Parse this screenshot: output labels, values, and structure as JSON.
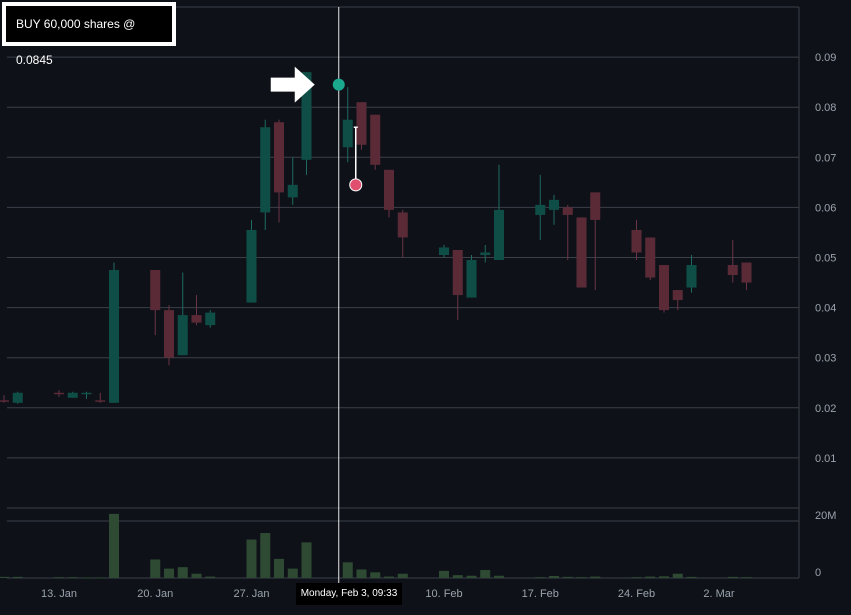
{
  "trade_label": "BUY 60,000 shares @ 0.0845",
  "cursor_label": "Monday, Feb 3, 09:33",
  "colors": {
    "background": "#0e1118",
    "grid": "#3b4048",
    "up": "#0f4e46",
    "down": "#5a2a36",
    "wick_up": "#1d6a60",
    "wick_down": "#6a3444",
    "volume": "#2e4a32",
    "buy_marker": "#1aa88f",
    "sell_marker": "#e0506e",
    "axis_text": "#9aa3ad"
  },
  "chart_data": {
    "type": "candlestick",
    "title": "",
    "price_axis": {
      "ylim": [
        0,
        0.1
      ],
      "ticks": [
        "0.01",
        "0.02",
        "0.03",
        "0.04",
        "0.05",
        "0.06",
        "0.07",
        "0.08",
        "0.09"
      ],
      "position": "right"
    },
    "volume_axis": {
      "ticks": [
        "0",
        "20M"
      ],
      "position": "right"
    },
    "x_axis": {
      "labels": [
        "13. Jan",
        "20. Jan",
        "27. Jan",
        "3. Feb",
        "10. Feb",
        "17. Feb",
        "24. Feb",
        "2. Mar"
      ],
      "label_dates": [
        "2025-01-13",
        "2025-01-20",
        "2025-01-27",
        "2025-02-03",
        "2025-02-10",
        "2025-02-17",
        "2025-02-24",
        "2025-03-02"
      ]
    },
    "grid": true,
    "candles": [
      {
        "date": "2025-01-09",
        "open": 0.0215,
        "high": 0.0225,
        "low": 0.021,
        "close": 0.0212
      },
      {
        "date": "2025-01-10",
        "open": 0.021,
        "high": 0.0232,
        "low": 0.0208,
        "close": 0.023
      },
      {
        "date": "2025-01-13",
        "open": 0.023,
        "high": 0.0235,
        "low": 0.0222,
        "close": 0.0228
      },
      {
        "date": "2025-01-14",
        "open": 0.022,
        "high": 0.0232,
        "low": 0.022,
        "close": 0.023
      },
      {
        "date": "2025-01-15",
        "open": 0.023,
        "high": 0.0232,
        "low": 0.0218,
        "close": 0.023
      },
      {
        "date": "2025-01-16",
        "open": 0.0215,
        "high": 0.023,
        "low": 0.021,
        "close": 0.0212
      },
      {
        "date": "2025-01-17",
        "open": 0.021,
        "high": 0.049,
        "low": 0.021,
        "close": 0.0475
      },
      {
        "date": "2025-01-20",
        "open": 0.0475,
        "high": 0.0475,
        "low": 0.0345,
        "close": 0.0395
      },
      {
        "date": "2025-01-21",
        "open": 0.0395,
        "high": 0.0405,
        "low": 0.0285,
        "close": 0.03
      },
      {
        "date": "2025-01-22",
        "open": 0.0305,
        "high": 0.047,
        "low": 0.0305,
        "close": 0.0385
      },
      {
        "date": "2025-01-23",
        "open": 0.0385,
        "high": 0.0425,
        "low": 0.0365,
        "close": 0.037
      },
      {
        "date": "2025-01-24",
        "open": 0.0365,
        "high": 0.0395,
        "low": 0.036,
        "close": 0.039
      },
      {
        "date": "2025-01-27",
        "open": 0.041,
        "high": 0.0575,
        "low": 0.041,
        "close": 0.0555
      },
      {
        "date": "2025-01-28",
        "open": 0.059,
        "high": 0.0775,
        "low": 0.0555,
        "close": 0.076
      },
      {
        "date": "2025-01-29",
        "open": 0.077,
        "high": 0.0775,
        "low": 0.057,
        "close": 0.063
      },
      {
        "date": "2025-01-30",
        "open": 0.062,
        "high": 0.07,
        "low": 0.0605,
        "close": 0.0645
      },
      {
        "date": "2025-01-31",
        "open": 0.0695,
        "high": 0.087,
        "low": 0.0665,
        "close": 0.087
      },
      {
        "date": "2025-02-03",
        "open": 0.072,
        "high": 0.084,
        "low": 0.069,
        "close": 0.0775
      },
      {
        "date": "2025-02-04",
        "open": 0.081,
        "high": 0.081,
        "low": 0.0715,
        "close": 0.0725
      },
      {
        "date": "2025-02-05",
        "open": 0.0785,
        "high": 0.0785,
        "low": 0.0675,
        "close": 0.0685
      },
      {
        "date": "2025-02-06",
        "open": 0.0675,
        "high": 0.0675,
        "low": 0.058,
        "close": 0.0595
      },
      {
        "date": "2025-02-07",
        "open": 0.059,
        "high": 0.0595,
        "low": 0.05,
        "close": 0.054
      },
      {
        "date": "2025-02-10",
        "open": 0.0505,
        "high": 0.0525,
        "low": 0.05,
        "close": 0.052
      },
      {
        "date": "2025-02-11",
        "open": 0.0515,
        "high": 0.0515,
        "low": 0.0375,
        "close": 0.0425
      },
      {
        "date": "2025-02-12",
        "open": 0.042,
        "high": 0.0505,
        "low": 0.042,
        "close": 0.0495
      },
      {
        "date": "2025-02-13",
        "open": 0.0505,
        "high": 0.0525,
        "low": 0.049,
        "close": 0.051
      },
      {
        "date": "2025-02-14",
        "open": 0.0495,
        "high": 0.0685,
        "low": 0.0495,
        "close": 0.0595
      },
      {
        "date": "2025-02-17",
        "open": 0.0585,
        "high": 0.0665,
        "low": 0.0535,
        "close": 0.0605
      },
      {
        "date": "2025-02-18",
        "open": 0.0595,
        "high": 0.0625,
        "low": 0.0565,
        "close": 0.0615
      },
      {
        "date": "2025-02-19",
        "open": 0.06,
        "high": 0.0605,
        "low": 0.0495,
        "close": 0.0585
      },
      {
        "date": "2025-02-20",
        "open": 0.058,
        "high": 0.058,
        "low": 0.044,
        "close": 0.044
      },
      {
        "date": "2025-02-21",
        "open": 0.063,
        "high": 0.063,
        "low": 0.0435,
        "close": 0.0575
      },
      {
        "date": "2025-02-24",
        "open": 0.0555,
        "high": 0.0575,
        "low": 0.0495,
        "close": 0.051
      },
      {
        "date": "2025-02-25",
        "open": 0.054,
        "high": 0.054,
        "low": 0.0455,
        "close": 0.046
      },
      {
        "date": "2025-02-26",
        "open": 0.0485,
        "high": 0.0485,
        "low": 0.039,
        "close": 0.0395
      },
      {
        "date": "2025-02-27",
        "open": 0.0435,
        "high": 0.0435,
        "low": 0.0395,
        "close": 0.0415
      },
      {
        "date": "2025-02-28",
        "open": 0.044,
        "high": 0.0505,
        "low": 0.043,
        "close": 0.0485
      },
      {
        "date": "2025-03-03",
        "open": 0.0485,
        "high": 0.0535,
        "low": 0.045,
        "close": 0.0465
      },
      {
        "date": "2025-03-04",
        "open": 0.049,
        "high": 0.049,
        "low": 0.0435,
        "close": 0.045
      }
    ],
    "volume_millions": [
      0.4,
      0.4,
      0.3,
      0.3,
      0.2,
      0.2,
      22.5,
      6.5,
      3.3,
      3.8,
      1.5,
      0.5,
      13.5,
      15.8,
      6.7,
      3.3,
      12.5,
      5.5,
      3.0,
      2.0,
      0.5,
      1.5,
      2.5,
      1.0,
      0.8,
      2.8,
      0.8,
      0.3,
      0.7,
      0.4,
      0.3,
      0.5,
      0.3,
      0.5,
      0.6,
      1.5,
      0.4,
      0.4,
      0.3
    ],
    "trades": [
      {
        "side": "BUY",
        "shares": 60000,
        "price": 0.0845,
        "date": "2025-02-03"
      },
      {
        "side": "SELL",
        "price": 0.0645,
        "date": "2025-02-03",
        "stop_price": 0.076
      }
    ]
  }
}
